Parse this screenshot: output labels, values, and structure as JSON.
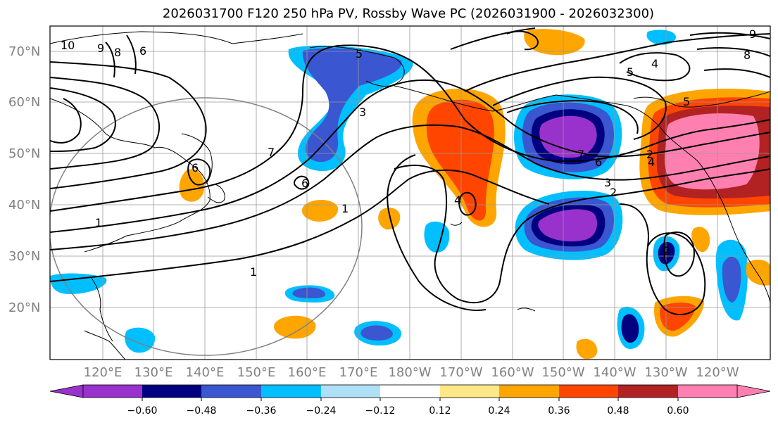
{
  "title": "2026031700 F120 250 hPa PV, Rossby Wave PC (2026031900 - 2026032300)",
  "map": {
    "lat_labels": [
      "70°N",
      "60°N",
      "50°N",
      "40°N",
      "30°N",
      "20°N"
    ],
    "lon_labels": [
      "120°E",
      "130°E",
      "140°E",
      "150°E",
      "160°E",
      "170°E",
      "180°W",
      "170°W",
      "160°W",
      "150°W",
      "140°W",
      "130°W",
      "120°W"
    ],
    "contour_labels": [
      "10",
      "9",
      "8",
      "7",
      "6",
      "5",
      "3",
      "7",
      "6",
      "6",
      "1",
      "1",
      "4",
      "5",
      "4",
      "6",
      "3",
      "2",
      "1",
      "2",
      "2",
      "5",
      "9",
      "8",
      "4"
    ]
  },
  "colorbar": {
    "colors": [
      "#9932cc",
      "#000080",
      "#3a56d0",
      "#00bfff",
      "#b0e0f8",
      "#ffffff",
      "#ffe887",
      "#ffa500",
      "#ff4500",
      "#b22222",
      "#ff80b0"
    ],
    "tick_labels": [
      "−0.60",
      "−0.48",
      "−0.36",
      "−0.24",
      "−0.12",
      "0.12",
      "0.24",
      "0.36",
      "0.48",
      "0.60"
    ]
  }
}
